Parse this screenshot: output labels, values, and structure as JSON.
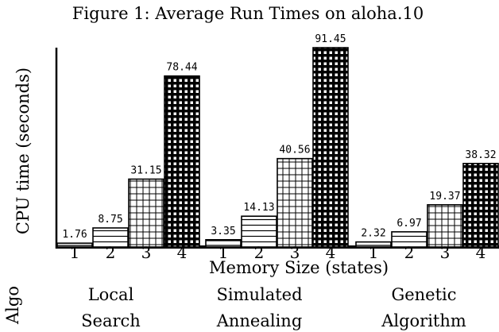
{
  "chart_data": {
    "type": "bar",
    "title": "Figure 1: Average Run Times on aloha.10",
    "ylabel": "CPU time (seconds)",
    "xlabel": "Memory Size (states)",
    "row_label": "Algo",
    "ylim": [
      0,
      91.45
    ],
    "grid": false,
    "groups": [
      {
        "name_lines": [
          "Local",
          "Search"
        ],
        "bars": [
          {
            "memory": "1",
            "value": 1.76,
            "label": "1.76"
          },
          {
            "memory": "2",
            "value": 8.75,
            "label": "8.75"
          },
          {
            "memory": "3",
            "value": 31.15,
            "label": "31.15"
          },
          {
            "memory": "4",
            "value": 78.44,
            "label": "78.44"
          }
        ]
      },
      {
        "name_lines": [
          "Simulated",
          "Annealing"
        ],
        "bars": [
          {
            "memory": "1",
            "value": 3.35,
            "label": "3.35"
          },
          {
            "memory": "2",
            "value": 14.13,
            "label": "14.13"
          },
          {
            "memory": "3",
            "value": 40.56,
            "label": "40.56"
          },
          {
            "memory": "4",
            "value": 91.45,
            "label": "91.45"
          }
        ]
      },
      {
        "name_lines": [
          "Genetic",
          "Algorithm"
        ],
        "bars": [
          {
            "memory": "1",
            "value": 2.32,
            "label": "2.32"
          },
          {
            "memory": "2",
            "value": 6.97,
            "label": "6.97"
          },
          {
            "memory": "3",
            "value": 19.37,
            "label": "19.37"
          },
          {
            "memory": "4",
            "value": 38.32,
            "label": "38.32"
          }
        ]
      }
    ]
  }
}
